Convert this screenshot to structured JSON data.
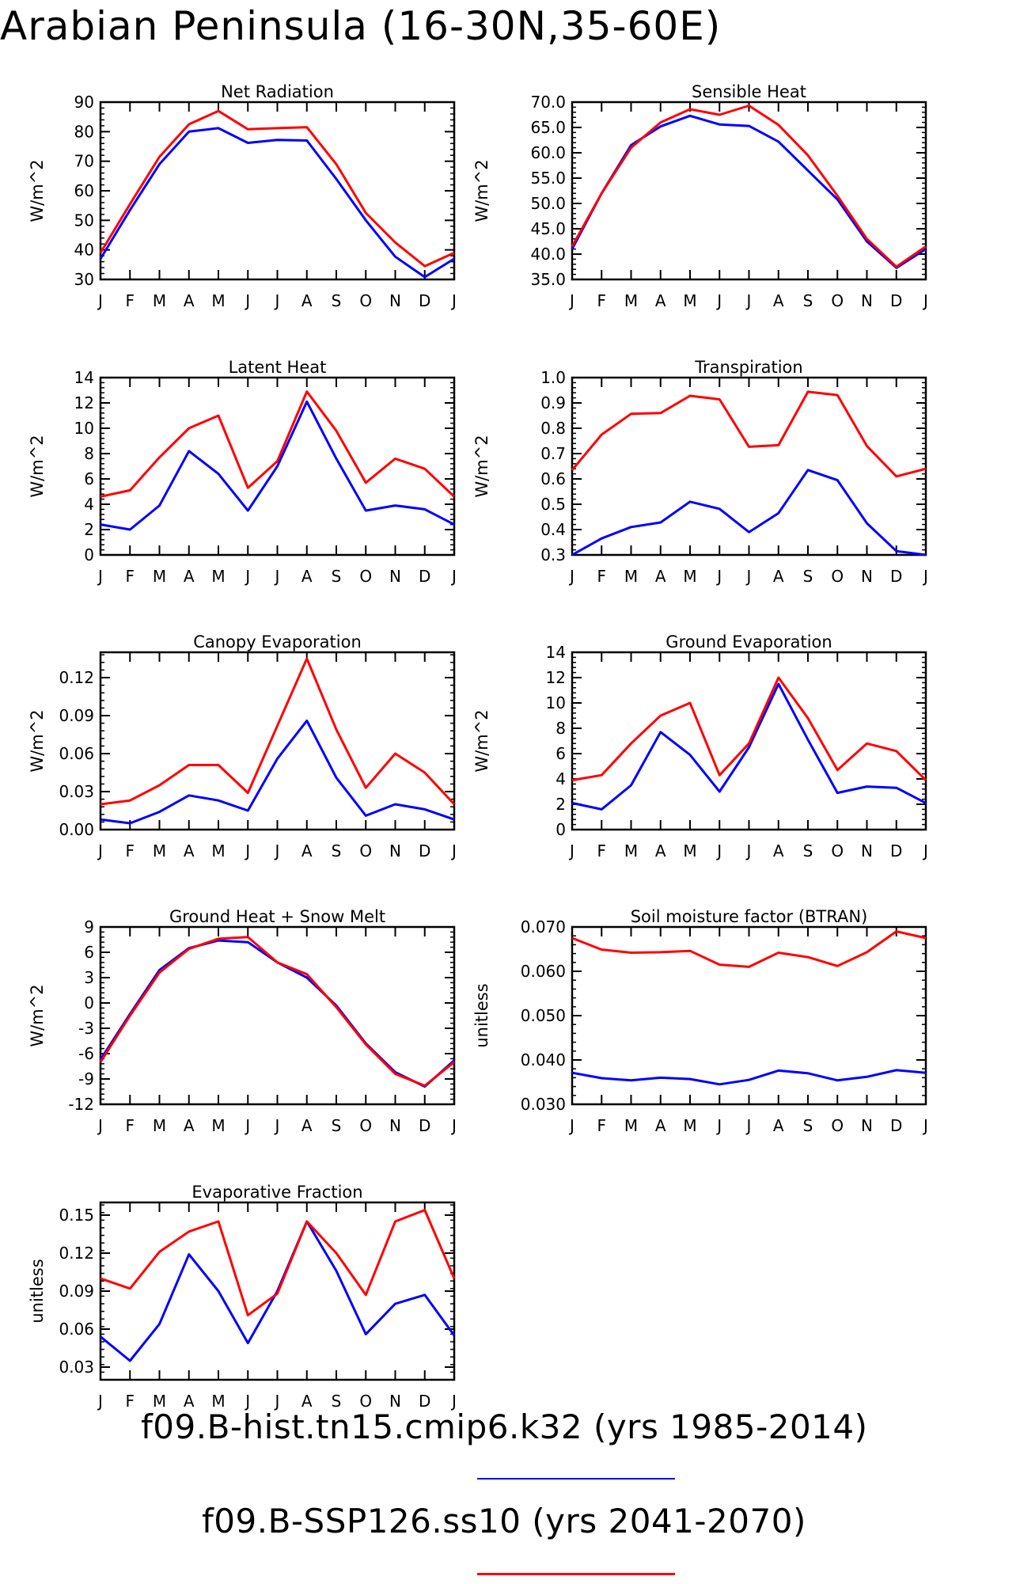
{
  "page_title": "Arabian Peninsula (16-30N,35-60E)",
  "months": [
    "J",
    "F",
    "M",
    "A",
    "M",
    "J",
    "J",
    "A",
    "S",
    "O",
    "N",
    "D",
    "J"
  ],
  "colors": {
    "hist": "#0000ff",
    "ssp": "#ff0000"
  },
  "legend": [
    {
      "label": "f09.B-hist.tn15.cmip6.k32 (yrs 1985-2014)",
      "color": "#0000ff"
    },
    {
      "label": "f09.B-SSP126.ss10 (yrs 2041-2070)",
      "color": "#ff0000"
    }
  ],
  "chart_data": [
    {
      "type": "line",
      "title": "Net Radiation",
      "ylabel": "W/m^2",
      "ylim": [
        30,
        90
      ],
      "yticks": [
        "30",
        "40",
        "50",
        "60",
        "70",
        "80",
        "90"
      ],
      "series": [
        {
          "color": "#0000ff",
          "values": [
            37,
            53.5,
            69,
            80,
            81.2,
            76.2,
            77.2,
            77,
            64,
            50,
            37.7,
            30.8,
            37
          ]
        },
        {
          "color": "#ff0000",
          "values": [
            39,
            55.5,
            71.5,
            82.5,
            87,
            80.8,
            81.2,
            81.5,
            69,
            52.5,
            42.5,
            34.5,
            39
          ]
        }
      ]
    },
    {
      "type": "line",
      "title": "Sensible Heat",
      "ylabel": "W/m^2",
      "ylim": [
        35,
        70
      ],
      "yticks": [
        "35.0",
        "40.0",
        "45.0",
        "50.0",
        "55.0",
        "60.0",
        "65.0",
        "70.0"
      ],
      "series": [
        {
          "color": "#0000ff",
          "values": [
            41,
            52,
            61.5,
            65.2,
            67.3,
            65.6,
            65.3,
            62.2,
            56.5,
            50.8,
            42.5,
            37.3,
            41
          ]
        },
        {
          "color": "#ff0000",
          "values": [
            41.5,
            52,
            61,
            66,
            68.6,
            67.5,
            69.3,
            65.5,
            59.5,
            51.5,
            43,
            37.5,
            41.5
          ]
        }
      ]
    },
    {
      "type": "line",
      "title": "Latent Heat",
      "ylabel": "W/m^2",
      "ylim": [
        0,
        14
      ],
      "yticks": [
        "0",
        "2",
        "4",
        "6",
        "8",
        "10",
        "12",
        "14"
      ],
      "series": [
        {
          "color": "#0000ff",
          "values": [
            2.4,
            2,
            3.9,
            8.2,
            6.4,
            3.5,
            7,
            12.1,
            7.6,
            3.5,
            3.9,
            3.6,
            2.4
          ]
        },
        {
          "color": "#ff0000",
          "values": [
            4.6,
            5.1,
            7.7,
            10,
            11,
            5.3,
            7.4,
            12.9,
            9.8,
            5.7,
            7.6,
            6.8,
            4.6
          ]
        }
      ]
    },
    {
      "type": "line",
      "title": "Transpiration",
      "ylabel": "W/m^2",
      "ylim": [
        0.3,
        1.0
      ],
      "yticks": [
        "0.3",
        "0.4",
        "0.5",
        "0.6",
        "0.7",
        "0.8",
        "0.9",
        "1.0"
      ],
      "series": [
        {
          "color": "#0000ff",
          "values": [
            0.3,
            0.365,
            0.41,
            0.428,
            0.51,
            0.482,
            0.39,
            0.465,
            0.635,
            0.595,
            0.425,
            0.315,
            0.3
          ]
        },
        {
          "color": "#ff0000",
          "values": [
            0.635,
            0.775,
            0.857,
            0.86,
            0.928,
            0.914,
            0.727,
            0.733,
            0.944,
            0.931,
            0.73,
            0.61,
            0.64
          ]
        }
      ]
    },
    {
      "type": "line",
      "title": "Canopy Evaporation",
      "ylabel": "W/m^2",
      "ylim": [
        0,
        0.14
      ],
      "yticks": [
        "0.00",
        "0.03",
        "0.06",
        "0.09",
        "0.12"
      ],
      "series": [
        {
          "color": "#0000ff",
          "values": [
            0.008,
            0.005,
            0.014,
            0.027,
            0.023,
            0.015,
            0.056,
            0.086,
            0.041,
            0.011,
            0.02,
            0.016,
            0.008
          ]
        },
        {
          "color": "#ff0000",
          "values": [
            0.02,
            0.023,
            0.035,
            0.051,
            0.051,
            0.029,
            0.082,
            0.135,
            0.079,
            0.033,
            0.06,
            0.045,
            0.02
          ]
        }
      ]
    },
    {
      "type": "line",
      "title": "Ground Evaporation",
      "ylabel": "W/m^2",
      "ylim": [
        0,
        14
      ],
      "yticks": [
        "0",
        "2",
        "4",
        "6",
        "8",
        "10",
        "12",
        "14"
      ],
      "series": [
        {
          "color": "#0000ff",
          "values": [
            2.1,
            1.6,
            3.5,
            7.7,
            5.9,
            3,
            6.5,
            11.5,
            7.1,
            2.9,
            3.4,
            3.3,
            2.1
          ]
        },
        {
          "color": "#ff0000",
          "values": [
            3.9,
            4.3,
            6.8,
            9,
            10,
            4.3,
            6.8,
            12,
            8.8,
            4.7,
            6.8,
            6.2,
            3.9
          ]
        }
      ]
    },
    {
      "type": "line",
      "title": "Ground Heat + Snow Melt",
      "ylabel": "W/m^2",
      "ylim": [
        -12,
        9
      ],
      "yticks": [
        "-12",
        "-9",
        "-6",
        "-3",
        "0",
        "3",
        "6",
        "9"
      ],
      "series": [
        {
          "color": "#0000ff",
          "values": [
            -6.7,
            -1.3,
            3.9,
            6.5,
            7.4,
            7.2,
            4.8,
            3,
            -0.3,
            -4.8,
            -8.2,
            -9.9,
            -6.8
          ]
        },
        {
          "color": "#ff0000",
          "values": [
            -7,
            -1.5,
            3.6,
            6.4,
            7.6,
            7.8,
            4.8,
            3.4,
            -0.5,
            -4.9,
            -8.4,
            -9.8,
            -7
          ]
        }
      ]
    },
    {
      "type": "line",
      "title": "Soil moisture factor (BTRAN)",
      "ylabel": "unitless",
      "ylim": [
        0.03,
        0.07
      ],
      "yticks": [
        "0.030",
        "0.040",
        "0.050",
        "0.060",
        "0.070"
      ],
      "series": [
        {
          "color": "#0000ff",
          "values": [
            0.0371,
            0.0359,
            0.0354,
            0.036,
            0.0357,
            0.0345,
            0.0355,
            0.0376,
            0.037,
            0.0354,
            0.0362,
            0.0377,
            0.0371
          ]
        },
        {
          "color": "#ff0000",
          "values": [
            0.0675,
            0.0649,
            0.0642,
            0.0643,
            0.0646,
            0.0615,
            0.061,
            0.0642,
            0.0632,
            0.0612,
            0.0643,
            0.069,
            0.0675
          ]
        }
      ]
    },
    {
      "type": "line",
      "title": "Evaporative Fraction",
      "ylabel": "unitless",
      "ylim": [
        0.02,
        0.16
      ],
      "yticks": [
        "0.03",
        "0.06",
        "0.09",
        "0.12",
        "0.15"
      ],
      "series": [
        {
          "color": "#0000ff",
          "values": [
            0.054,
            0.035,
            0.064,
            0.119,
            0.09,
            0.049,
            0.09,
            0.145,
            0.106,
            0.056,
            0.08,
            0.087,
            0.055
          ]
        },
        {
          "color": "#ff0000",
          "values": [
            0.1,
            0.092,
            0.121,
            0.137,
            0.145,
            0.071,
            0.088,
            0.145,
            0.12,
            0.087,
            0.145,
            0.154,
            0.1
          ]
        }
      ]
    }
  ]
}
